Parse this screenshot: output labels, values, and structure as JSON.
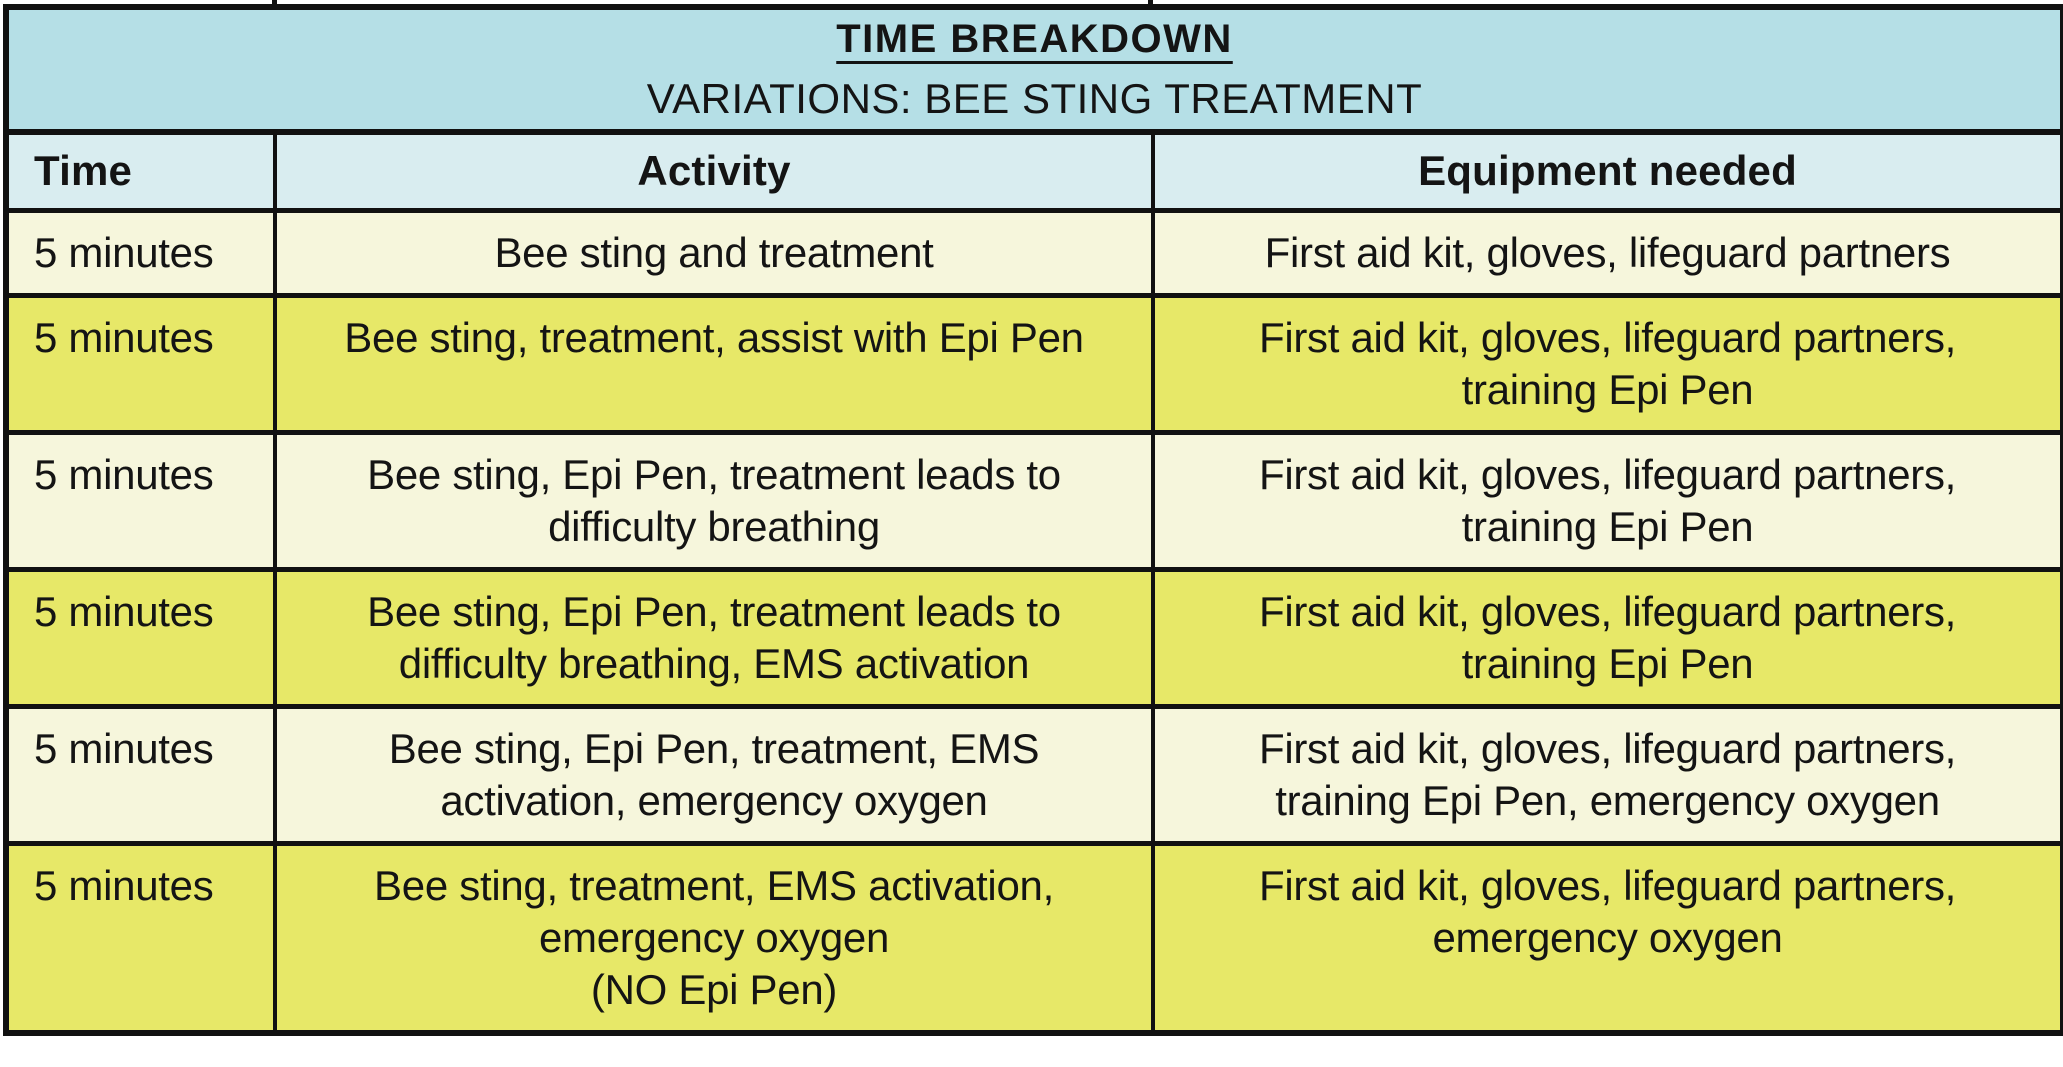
{
  "colors": {
    "title_band": "#b5dfe6",
    "header_band": "#d9edf0",
    "row_cream": "#f6f6dc",
    "row_yellow": "#e7e868",
    "border": "#111111",
    "text": "#141414"
  },
  "title": {
    "main": "TIME BREAKDOWN",
    "subtitle": "VARIATIONS: BEE STING TREATMENT"
  },
  "columns": [
    "Time",
    "Activity",
    "Equipment needed"
  ],
  "rows": [
    {
      "time": "5 minutes",
      "activity": "Bee sting and treatment",
      "equipment": "First aid kit, gloves, lifeguard partners"
    },
    {
      "time": "5 minutes",
      "activity": "Bee sting, treatment, assist with Epi Pen",
      "equipment": "First aid kit, gloves, lifeguard partners,\ntraining Epi Pen"
    },
    {
      "time": "5 minutes",
      "activity": "Bee sting, Epi Pen, treatment leads to\ndifficulty breathing",
      "equipment": "First aid kit, gloves, lifeguard partners,\ntraining Epi Pen"
    },
    {
      "time": "5 minutes",
      "activity": "Bee sting, Epi Pen, treatment leads to\ndifficulty breathing, EMS activation",
      "equipment": "First aid kit, gloves, lifeguard partners,\ntraining Epi Pen"
    },
    {
      "time": "5 minutes",
      "activity": "Bee sting, Epi Pen, treatment, EMS\nactivation, emergency oxygen",
      "equipment": "First aid kit, gloves, lifeguard partners,\ntraining Epi Pen, emergency oxygen"
    },
    {
      "time": "5 minutes",
      "activity": "Bee sting, treatment, EMS activation,\nemergency oxygen\n(NO Epi Pen)",
      "equipment": "First aid kit, gloves, lifeguard partners,\nemergency oxygen"
    }
  ]
}
